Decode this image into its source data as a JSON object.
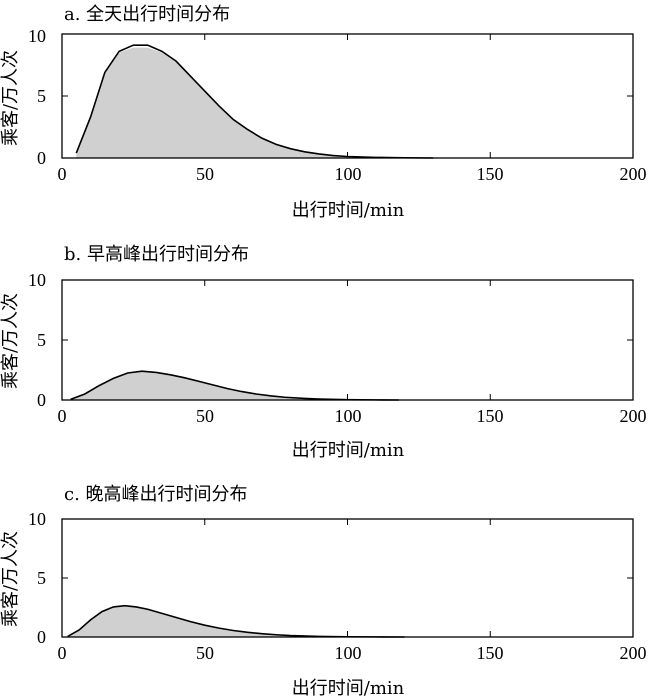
{
  "chart_data": [
    {
      "type": "area",
      "title": "a. 全天出行时间分布",
      "xlabel": "出行时间/min",
      "ylabel": "乘客/万人次",
      "xlim": [
        0,
        200
      ],
      "ylim": [
        0,
        10
      ],
      "xticks": [
        "0",
        "50",
        "100",
        "150",
        "200"
      ],
      "yticks": [
        "0",
        "5",
        "10"
      ],
      "grid": false,
      "series": [
        {
          "role": "histogram",
          "color": "#d0d0d0",
          "x": [
            5,
            10,
            15,
            20,
            25,
            30,
            35,
            40,
            45,
            50,
            55,
            60,
            65,
            70,
            75,
            80,
            85,
            90,
            95,
            100,
            110,
            120,
            130
          ],
          "values": [
            0.5,
            3.5,
            7.0,
            8.5,
            8.9,
            8.9,
            8.5,
            7.7,
            6.6,
            5.4,
            4.2,
            3.2,
            2.3,
            1.6,
            1.1,
            0.7,
            0.45,
            0.3,
            0.18,
            0.1,
            0.05,
            0.02,
            0.0
          ]
        },
        {
          "role": "fit",
          "color": "#000000",
          "x": [
            5,
            10,
            15,
            20,
            25,
            30,
            35,
            40,
            45,
            50,
            55,
            60,
            65,
            70,
            75,
            80,
            85,
            90,
            95,
            100,
            110,
            120,
            130
          ],
          "values": [
            0.4,
            3.3,
            6.9,
            8.6,
            9.1,
            9.1,
            8.6,
            7.8,
            6.6,
            5.4,
            4.2,
            3.1,
            2.3,
            1.6,
            1.1,
            0.75,
            0.5,
            0.33,
            0.2,
            0.12,
            0.05,
            0.02,
            0.0
          ]
        }
      ]
    },
    {
      "type": "area",
      "title": "b. 早高峰出行时间分布",
      "xlabel": "出行时间/min",
      "ylabel": "乘客/万人次",
      "xlim": [
        0,
        200
      ],
      "ylim": [
        0,
        10
      ],
      "xticks": [
        "0",
        "50",
        "100",
        "150",
        "200"
      ],
      "yticks": [
        "0",
        "5",
        "10"
      ],
      "grid": false,
      "series": [
        {
          "role": "histogram",
          "color": "#d0d0d0",
          "x": [
            3,
            8,
            13,
            18,
            23,
            28,
            33,
            38,
            43,
            48,
            53,
            58,
            63,
            68,
            73,
            78,
            85,
            90,
            100,
            110,
            118
          ],
          "values": [
            0.1,
            0.55,
            1.2,
            1.8,
            2.2,
            2.35,
            2.3,
            2.1,
            1.85,
            1.55,
            1.25,
            0.95,
            0.7,
            0.5,
            0.35,
            0.23,
            0.13,
            0.08,
            0.03,
            0.01,
            0.0
          ]
        },
        {
          "role": "fit",
          "color": "#000000",
          "x": [
            3,
            8,
            13,
            18,
            23,
            28,
            33,
            38,
            43,
            48,
            53,
            58,
            63,
            68,
            73,
            78,
            85,
            90,
            100,
            110,
            118
          ],
          "values": [
            0.05,
            0.5,
            1.2,
            1.8,
            2.25,
            2.4,
            2.3,
            2.1,
            1.85,
            1.55,
            1.25,
            0.95,
            0.7,
            0.5,
            0.35,
            0.23,
            0.13,
            0.08,
            0.03,
            0.01,
            0.0
          ]
        }
      ]
    },
    {
      "type": "area",
      "title": "c. 晚高峰出行时间分布",
      "xlabel": "出行时间/min",
      "ylabel": "乘客/万人次",
      "xlim": [
        0,
        200
      ],
      "ylim": [
        0,
        10
      ],
      "xticks": [
        "0",
        "50",
        "100",
        "150",
        "200"
      ],
      "yticks": [
        "0",
        "5",
        "10"
      ],
      "grid": false,
      "series": [
        {
          "role": "histogram",
          "color": "#d0d0d0",
          "x": [
            2,
            6,
            10,
            14,
            18,
            22,
            26,
            30,
            35,
            40,
            45,
            50,
            55,
            60,
            65,
            70,
            75,
            80,
            90,
            100,
            110,
            120
          ],
          "values": [
            0.1,
            0.6,
            1.4,
            2.1,
            2.5,
            2.6,
            2.55,
            2.35,
            2.0,
            1.65,
            1.3,
            1.0,
            0.75,
            0.55,
            0.4,
            0.28,
            0.19,
            0.12,
            0.05,
            0.02,
            0.01,
            0.0
          ]
        },
        {
          "role": "fit",
          "color": "#000000",
          "x": [
            2,
            6,
            10,
            14,
            18,
            22,
            26,
            30,
            35,
            40,
            45,
            50,
            55,
            60,
            65,
            70,
            75,
            80,
            90,
            100,
            110,
            120
          ],
          "values": [
            0.05,
            0.6,
            1.45,
            2.15,
            2.55,
            2.65,
            2.55,
            2.35,
            2.0,
            1.65,
            1.3,
            1.0,
            0.75,
            0.55,
            0.4,
            0.28,
            0.19,
            0.12,
            0.05,
            0.02,
            0.01,
            0.0
          ]
        }
      ]
    }
  ]
}
